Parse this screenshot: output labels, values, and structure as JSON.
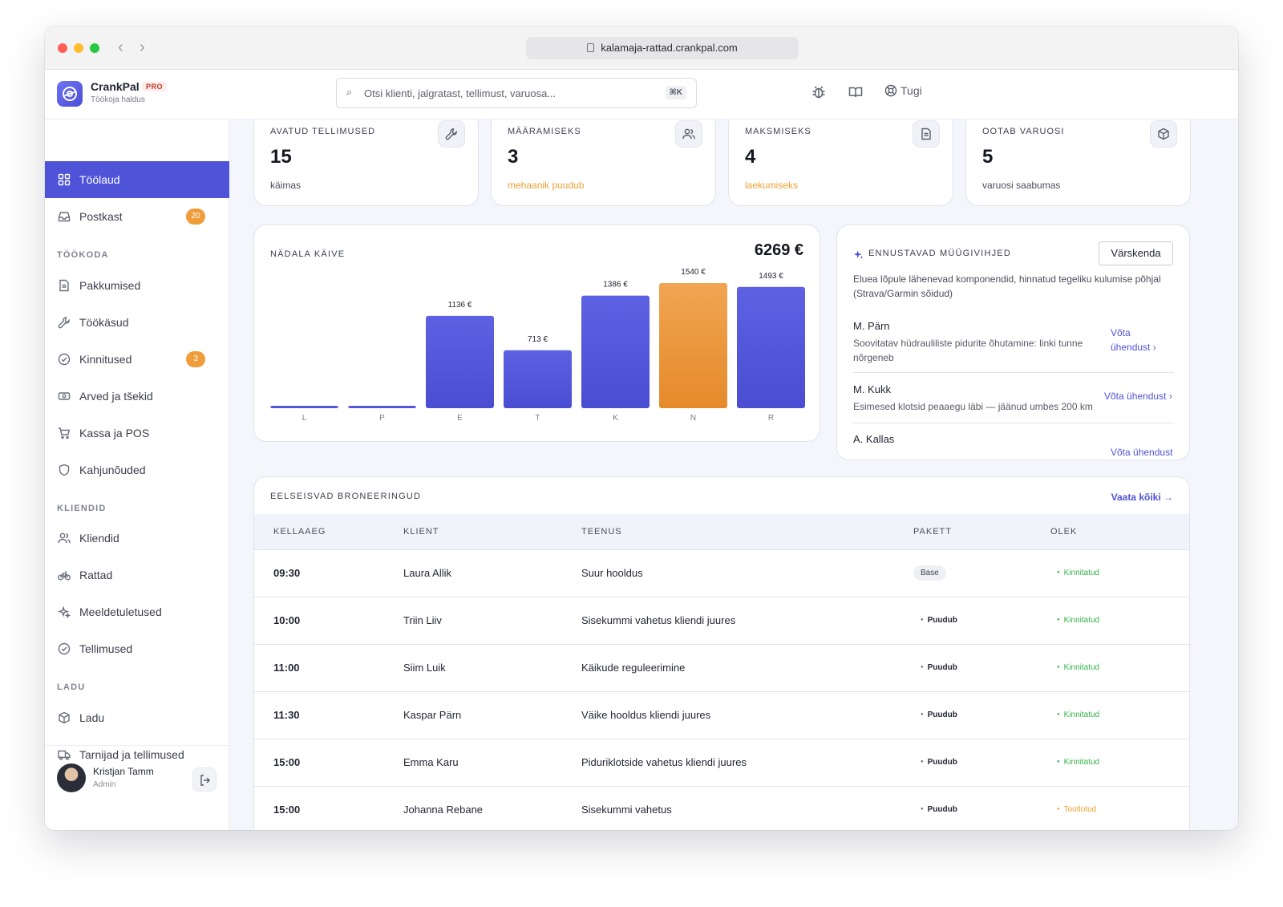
{
  "browser": {
    "url": "kalamaja-rattad.crankpal.com"
  },
  "brand": {
    "name": "CrankPal",
    "badge": "PRO",
    "subtitle": "Töökoja haldus"
  },
  "search": {
    "placeholder": "Otsi klienti, jalgratast, tellimust, varuosa...",
    "shortcut": "⌘K"
  },
  "header": {
    "help_label": "Tugi"
  },
  "sidebar": {
    "items": [
      {
        "label": "Töölaud",
        "icon": "dashboard-icon",
        "active": true
      },
      {
        "label": "Postkast",
        "icon": "inbox-icon",
        "badge": "20"
      }
    ],
    "sections": [
      {
        "title": "TÖÖKODA",
        "items": [
          {
            "label": "Pakkumised",
            "icon": "document-icon"
          },
          {
            "label": "Töökäsud",
            "icon": "wrench-icon"
          },
          {
            "label": "Kinnitused",
            "icon": "check-circle-icon",
            "badge": "3"
          },
          {
            "label": "Arved ja tšekid",
            "icon": "cash-icon"
          },
          {
            "label": "Kassa ja POS",
            "icon": "cart-icon"
          },
          {
            "label": "Kahjunõuded",
            "icon": "shield-icon"
          }
        ]
      },
      {
        "title": "KLIENDID",
        "items": [
          {
            "label": "Kliendid",
            "icon": "users-icon"
          },
          {
            "label": "Rattad",
            "icon": "bicycle-icon"
          },
          {
            "label": "Meeldetuletused",
            "icon": "sparkle-icon"
          },
          {
            "label": "Tellimused",
            "icon": "check-circle-icon"
          }
        ]
      },
      {
        "title": "LADU",
        "items": [
          {
            "label": "Ladu",
            "icon": "box-icon"
          },
          {
            "label": "Tarnijad ja tellimused",
            "icon": "truck-icon"
          }
        ]
      }
    ],
    "user": {
      "name": "Kristjan Tamm",
      "role": "Admin"
    }
  },
  "stats": [
    {
      "title": "AVATUD TELLIMUSED",
      "value": "15",
      "sub": "käimas",
      "icon": "wrench-icon",
      "warn": false
    },
    {
      "title": "MÄÄRAMISEKS",
      "value": "3",
      "sub": "mehaanik puudub",
      "icon": "users-icon",
      "warn": true
    },
    {
      "title": "MAKSMISEKS",
      "value": "4",
      "sub": "laekumiseks",
      "icon": "document-icon",
      "warn": true
    },
    {
      "title": "OOTAB VARUOSI",
      "value": "5",
      "sub": "varuosi saabumas",
      "icon": "box-icon",
      "warn": false
    }
  ],
  "weekly": {
    "title": "NÄDALA KÄIVE",
    "total": "6269 €"
  },
  "chart_data": {
    "type": "bar",
    "title": "NÄDALA KÄIVE",
    "categories": [
      "L",
      "P",
      "E",
      "T",
      "K",
      "N",
      "R"
    ],
    "values": [
      0,
      0,
      1136,
      713,
      1386,
      1540,
      1493
    ],
    "value_labels": [
      "",
      "",
      "1136 €",
      "713 €",
      "1386 €",
      "1540 €",
      "1493 €"
    ],
    "highlight_index": 5,
    "ylim": [
      0,
      1540
    ],
    "colors": {
      "bar": "#5458dc",
      "highlight": "#eea24a"
    },
    "grid": false
  },
  "predictive": {
    "title": "ENNUSTAVAD MÜÜGIVIHJED",
    "refresh_label": "Värskenda",
    "description": "Eluea lõpule lähenevad komponendid, hinnatud tegeliku kulumise põhjal (Strava/Garmin sõidud)",
    "items": [
      {
        "name": "M. Pärn",
        "text": "Soovitatav hüdrauliliste pidurite õhutamine: linki tunne nõrgeneb",
        "link": "Võta ühendust ›"
      },
      {
        "name": "M. Kukk",
        "text": "Esimesed klotsid peaaegu läbi — jäänud umbes 200 km",
        "link": "Võta ühendust ›"
      },
      {
        "name": "A. Kallas",
        "text": "",
        "link": "Võta ühendust ›"
      }
    ]
  },
  "bookings": {
    "title": "EELSEISVAD BRONEERINGUD",
    "view_all": "Vaata kõiki →",
    "columns": [
      "KELLAAEG",
      "KLIENT",
      "TEENUS",
      "PAKETT",
      "OLEK"
    ],
    "rows": [
      {
        "time": "09:30",
        "client": "Laura Allik",
        "service": "Suur hooldus",
        "package": "Base",
        "status": "Kinnitatud"
      },
      {
        "time": "10:00",
        "client": "Triin Liiv",
        "service": "Sisekummi vahetus kliendi juures",
        "package": "Puudub",
        "status": "Kinnitatud"
      },
      {
        "time": "11:00",
        "client": "Siim Luik",
        "service": "Käikude reguleerimine",
        "package": "Puudub",
        "status": "Kinnitatud"
      },
      {
        "time": "11:30",
        "client": "Kaspar Pärn",
        "service": "Väike hooldus kliendi juures",
        "package": "Puudub",
        "status": "Kinnitatud"
      },
      {
        "time": "15:00",
        "client": "Emma Karu",
        "service": "Piduriklotside vahetus kliendi juures",
        "package": "Puudub",
        "status": "Kinnitatud"
      },
      {
        "time": "15:00",
        "client": "Johanna Rebane",
        "service": "Sisekummi vahetus",
        "package": "Puudub",
        "status": "Tootlotud"
      }
    ]
  }
}
